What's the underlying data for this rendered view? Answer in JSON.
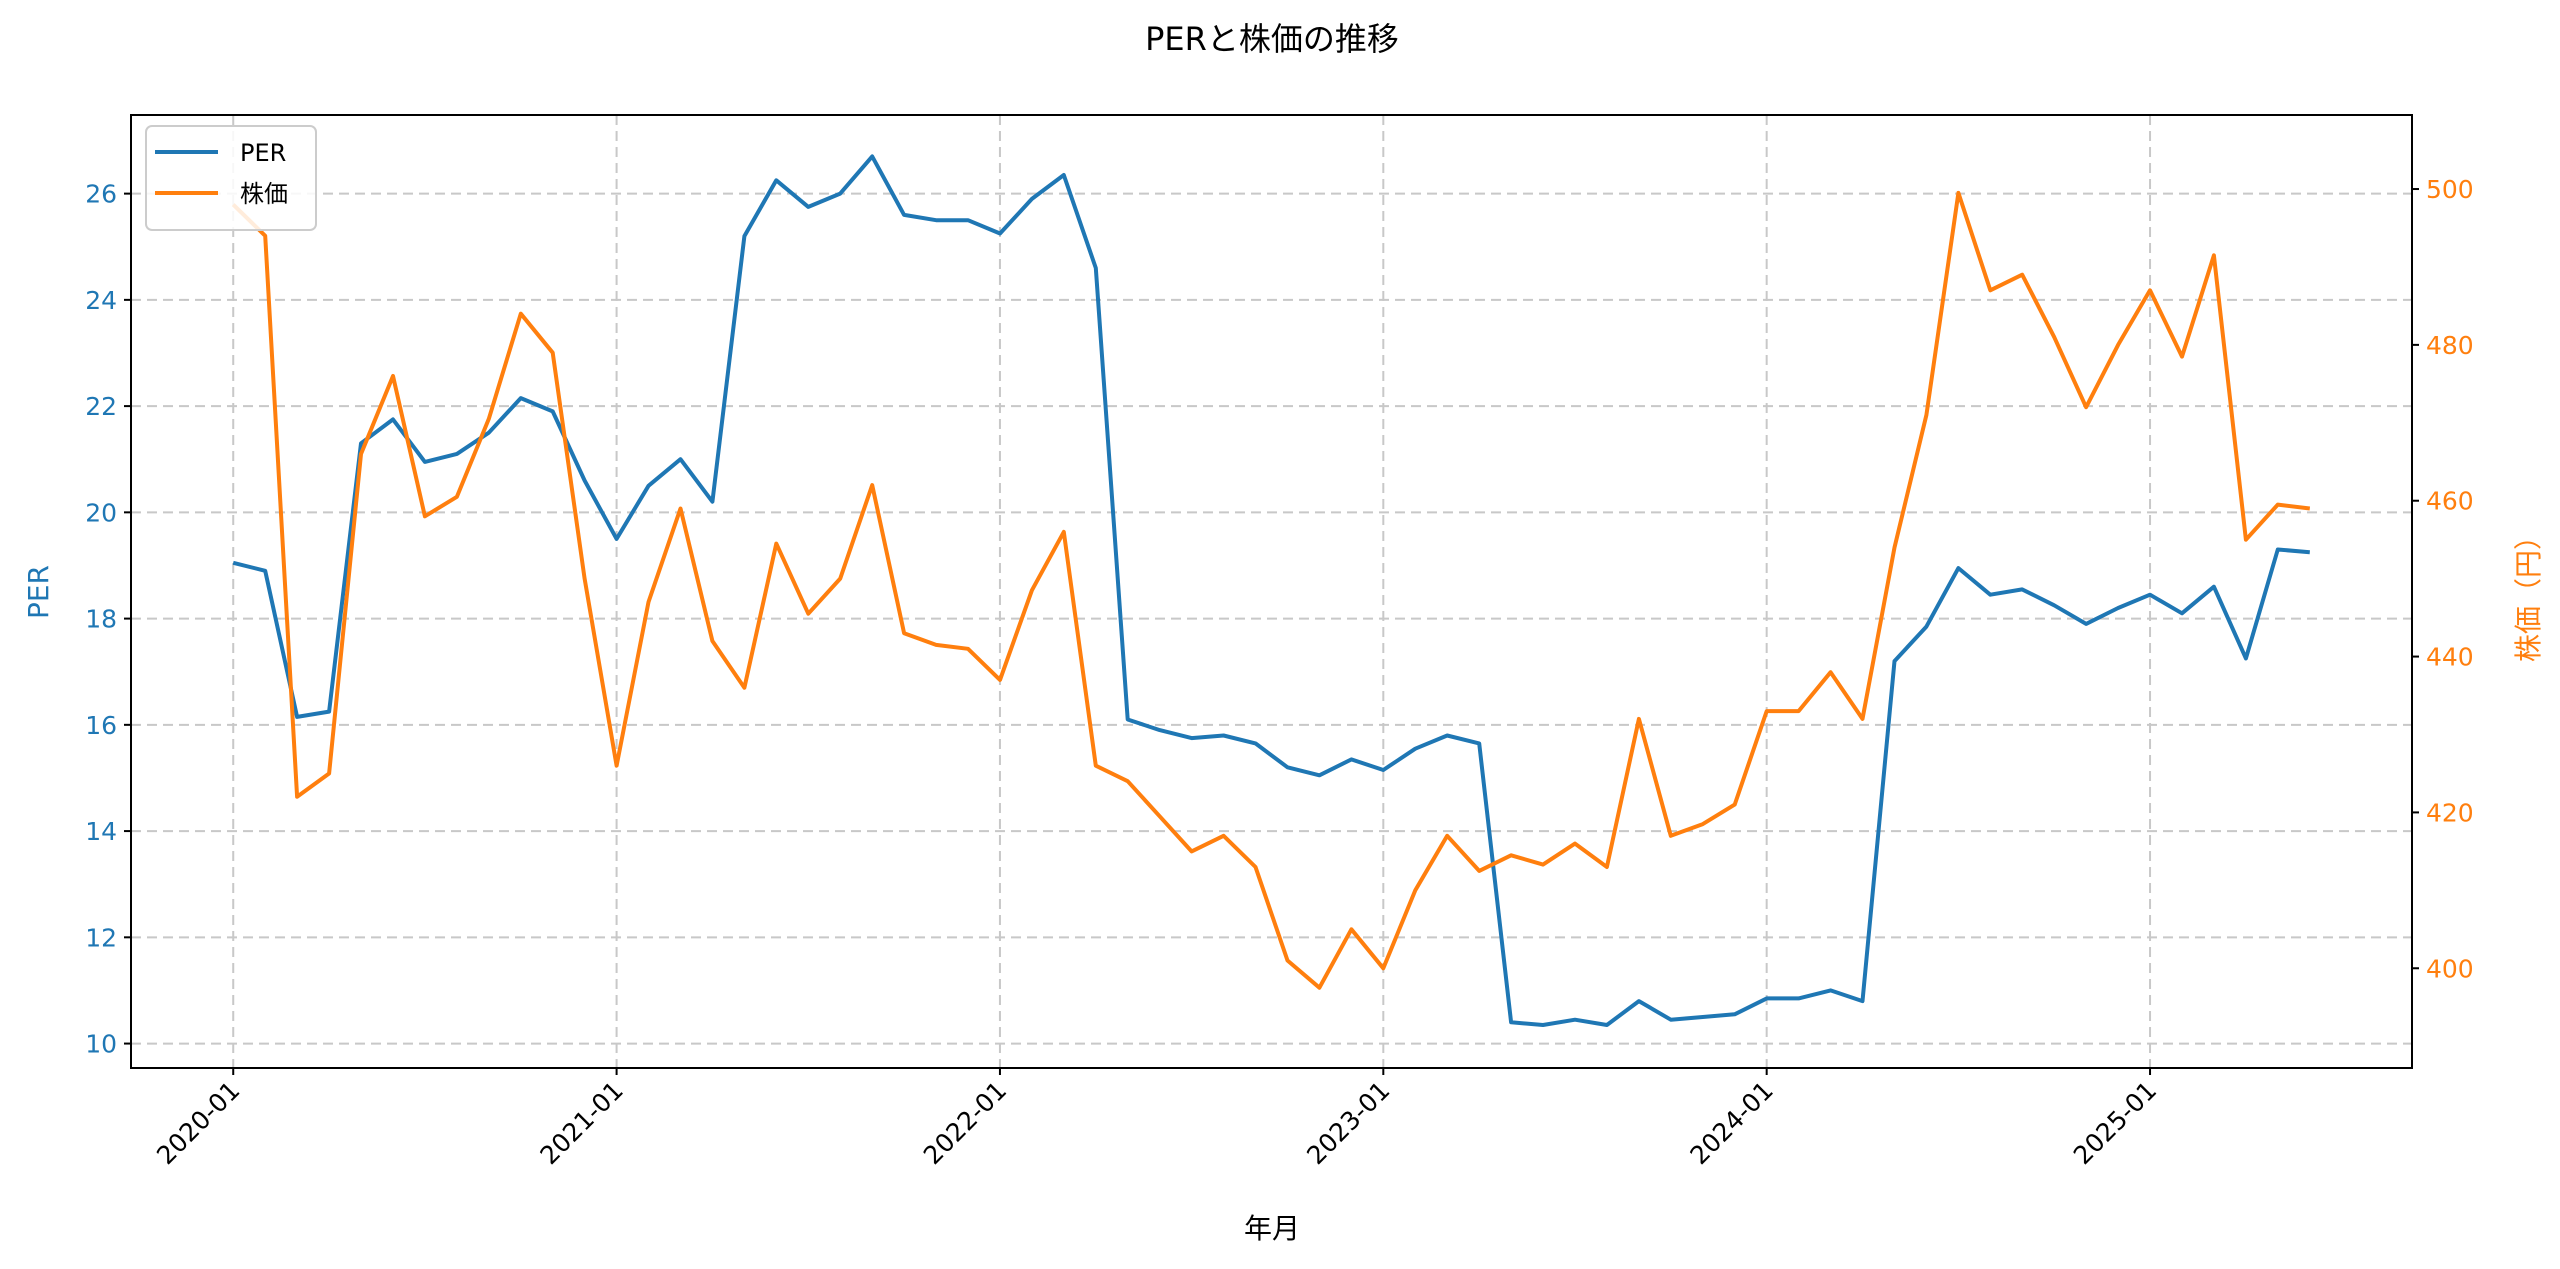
{
  "chart_data": {
    "type": "line",
    "title": "PERと株価の推移",
    "xlabel": "年月",
    "ylabel": "PER",
    "ylabel_right": "株価（円）",
    "xlim_months": [
      -3.2,
      68.2
    ],
    "ylim": [
      9.54,
      27.48
    ],
    "ylim_right": [
      387.2,
      509.5
    ],
    "yticks": [
      10,
      12,
      14,
      16,
      18,
      20,
      22,
      24,
      26
    ],
    "yticks_right": [
      400,
      420,
      440,
      460,
      480,
      500
    ],
    "xtick_labels": [
      "2020-01",
      "2021-01",
      "2022-01",
      "2023-01",
      "2024-01",
      "2025-01"
    ],
    "xtick_month_index": [
      0,
      12,
      24,
      36,
      48,
      60
    ],
    "grid": true,
    "legend_position": "top-left",
    "x_start": "2020-01",
    "x_end": "2025-06",
    "series": [
      {
        "name": "PER",
        "axis": "left",
        "color": "#1f77b4",
        "values": [
          19.05,
          18.9,
          16.15,
          16.25,
          21.3,
          21.75,
          20.95,
          21.1,
          21.5,
          22.15,
          21.9,
          20.6,
          19.5,
          20.5,
          21.0,
          20.2,
          25.2,
          26.25,
          25.75,
          26.0,
          26.7,
          25.6,
          25.5,
          25.5,
          25.25,
          25.9,
          26.35,
          24.6,
          16.1,
          15.9,
          15.75,
          15.8,
          15.65,
          15.2,
          15.05,
          15.35,
          15.15,
          15.55,
          15.8,
          15.65,
          10.4,
          10.35,
          10.45,
          10.35,
          10.8,
          10.45,
          10.5,
          10.55,
          10.85,
          10.85,
          11.0,
          10.8,
          17.2,
          17.85,
          18.95,
          18.45,
          18.55,
          18.25,
          17.9,
          18.2,
          18.45,
          18.1,
          18.6,
          17.25,
          19.3,
          19.25
        ]
      },
      {
        "name": "株価",
        "axis": "right",
        "color": "#ff7f0e",
        "values": [
          498,
          494,
          422,
          425,
          466,
          476,
          458,
          460.5,
          470.5,
          484,
          479,
          450,
          426,
          447,
          459,
          442,
          436,
          454.5,
          445.5,
          450,
          462,
          443,
          441.5,
          441,
          437,
          448.5,
          456,
          426,
          424,
          419.5,
          415,
          417,
          413,
          401,
          397.5,
          405,
          400,
          410,
          417,
          412.5,
          414.5,
          413.3,
          416,
          413,
          432,
          417,
          418.5,
          421,
          433,
          433,
          438,
          432,
          454,
          471,
          499.5,
          487,
          489,
          481,
          472,
          480,
          487,
          478.5,
          491.5,
          455,
          459.5,
          459
        ]
      }
    ]
  }
}
